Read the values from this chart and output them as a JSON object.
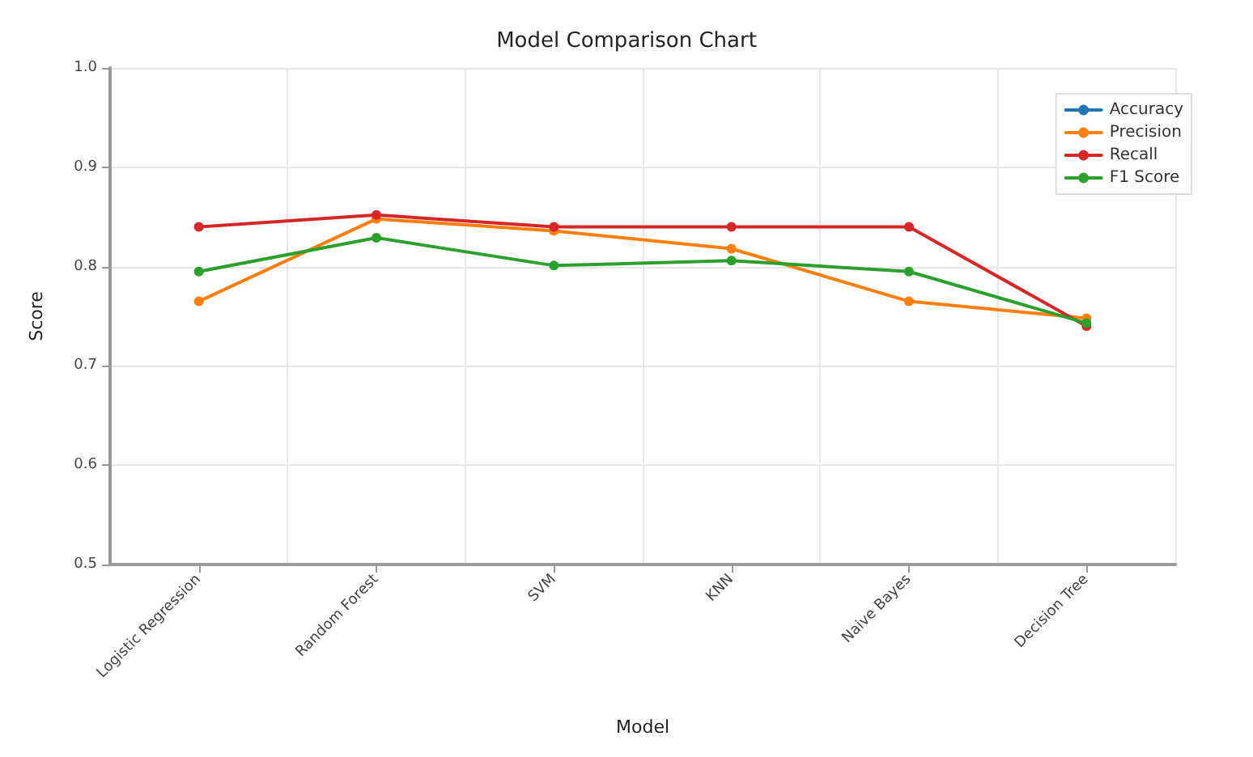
{
  "chart_data": {
    "type": "line",
    "title": "Model Comparison Chart",
    "xlabel": "Model",
    "ylabel": "Score",
    "categories": [
      "Logistic Regression",
      "Random Forest",
      "SVM",
      "KNN",
      "Naive Bayes",
      "Decision Tree"
    ],
    "series": [
      {
        "name": "Accuracy",
        "color": "#1f77b4",
        "values": [
          null,
          null,
          null,
          null,
          null,
          null
        ]
      },
      {
        "name": "Precision",
        "color": "#ff7f0e",
        "values": [
          0.765,
          0.848,
          0.836,
          0.818,
          0.765,
          0.748
        ]
      },
      {
        "name": "Recall",
        "color": "#d62728",
        "values": [
          0.84,
          0.852,
          0.84,
          0.84,
          0.84,
          0.74
        ]
      },
      {
        "name": "F1 Score",
        "color": "#2ca02c",
        "values": [
          0.795,
          0.829,
          0.801,
          0.806,
          0.795,
          0.743
        ]
      }
    ],
    "ylim": [
      0.5,
      1.0
    ],
    "yticks": [
      0.5,
      0.6,
      0.7,
      0.8,
      0.9,
      {
        "value": 1,
        "label": "1.0"
      }
    ],
    "grid": true,
    "legend": "top right",
    "marker": "circle",
    "line_style": "solid"
  }
}
